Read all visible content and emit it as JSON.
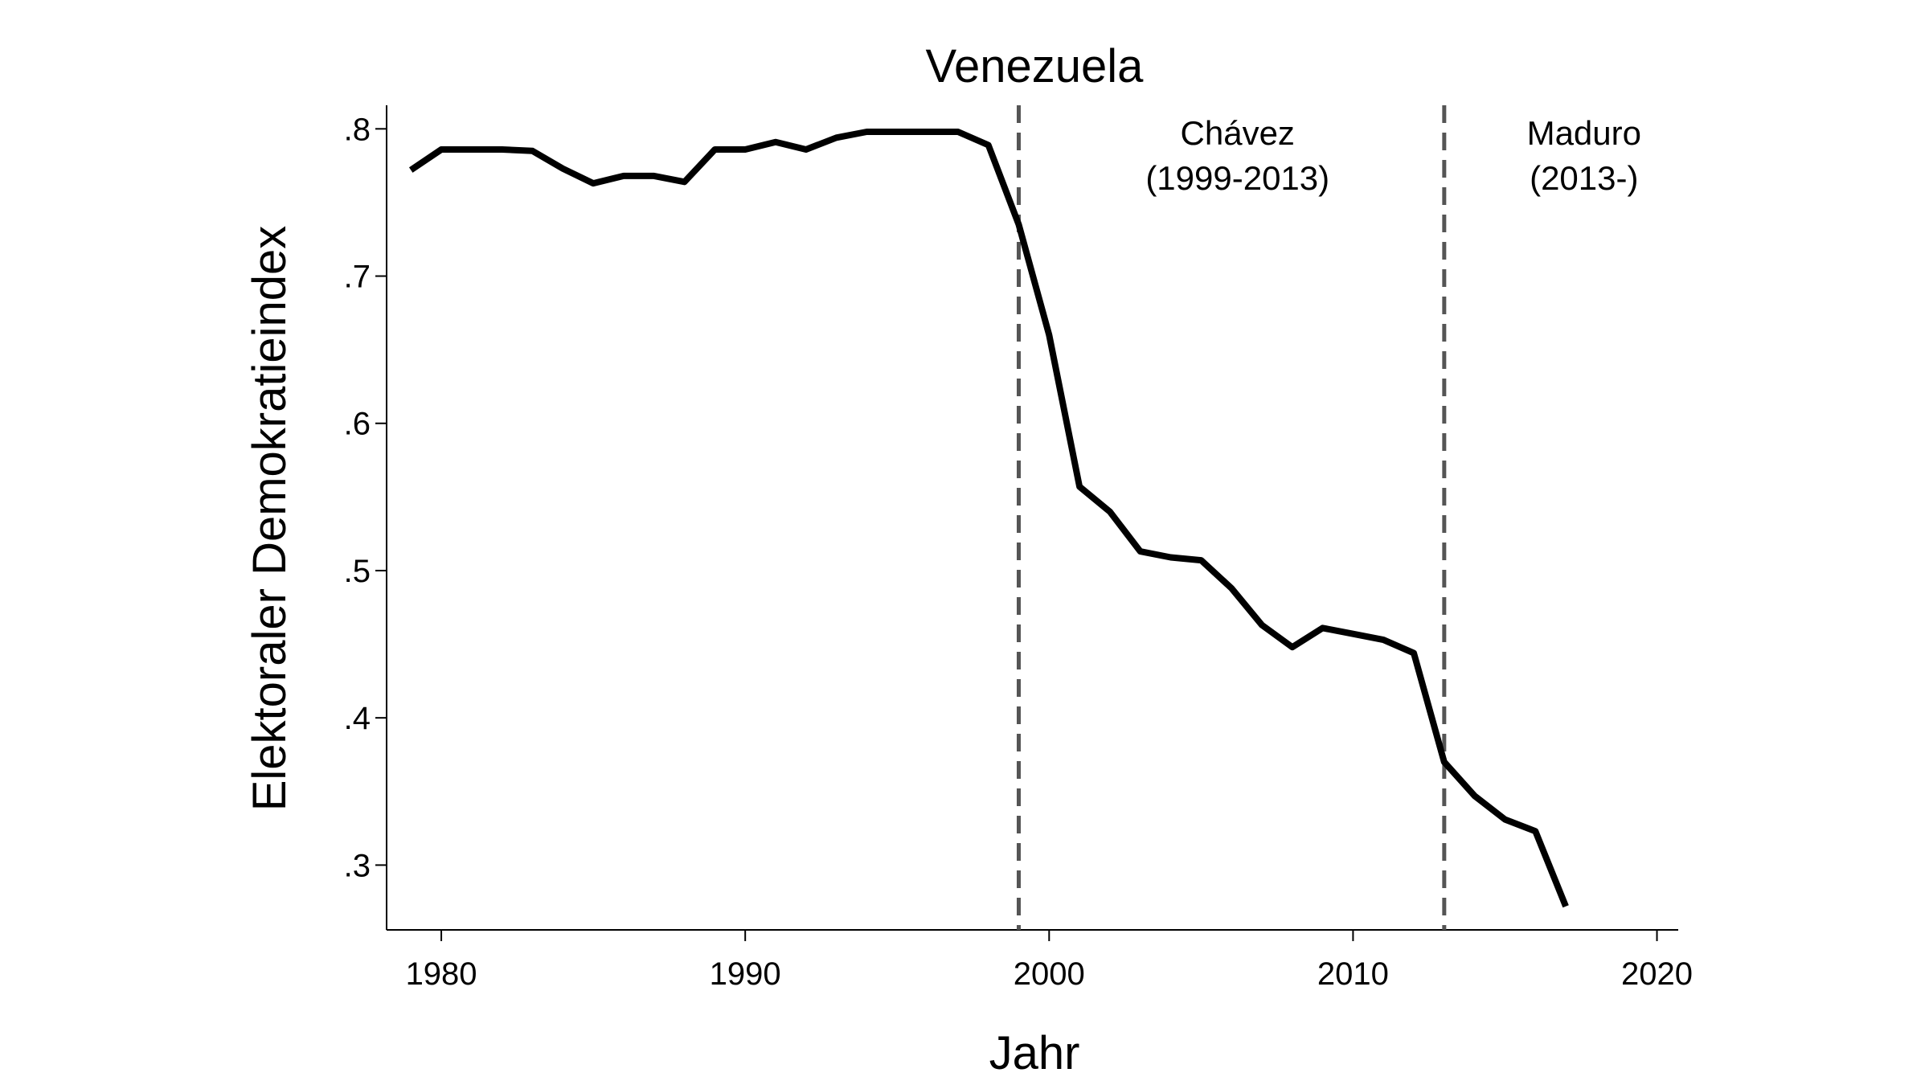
{
  "chart_data": {
    "type": "line",
    "title": "Venezuela",
    "xlabel": "Jahr",
    "ylabel": "Elektoraler Demokratieindex",
    "xlim": [
      1978.2,
      2020.7
    ],
    "ylim": [
      0.256,
      0.816
    ],
    "xticks": [
      1980,
      1990,
      2000,
      2010,
      2020
    ],
    "xtick_labels": [
      "1980",
      "1990",
      "2000",
      "2010",
      "2020"
    ],
    "yticks": [
      0.3,
      0.4,
      0.5,
      0.6,
      0.7,
      0.8
    ],
    "ytick_labels": [
      ".3",
      ".4",
      ".5",
      ".6",
      ".7",
      ".8"
    ],
    "grid": false,
    "series": [
      {
        "color": "#000000",
        "x": [
          1979,
          1980,
          1981,
          1982,
          1983,
          1984,
          1985,
          1986,
          1987,
          1988,
          1989,
          1990,
          1991,
          1992,
          1993,
          1994,
          1995,
          1996,
          1997,
          1998,
          1999,
          2000,
          2001,
          2002,
          2003,
          2004,
          2005,
          2006,
          2007,
          2008,
          2009,
          2010,
          2011,
          2012,
          2013,
          2014,
          2015,
          2016,
          2017
        ],
        "y": [
          0.772,
          0.786,
          0.786,
          0.786,
          0.785,
          0.773,
          0.763,
          0.768,
          0.768,
          0.764,
          0.786,
          0.786,
          0.791,
          0.786,
          0.794,
          0.798,
          0.798,
          0.798,
          0.798,
          0.789,
          0.735,
          0.66,
          0.557,
          0.54,
          0.513,
          0.509,
          0.507,
          0.488,
          0.463,
          0.448,
          0.461,
          0.457,
          0.453,
          0.444,
          0.37,
          0.347,
          0.331,
          0.323,
          0.272
        ]
      }
    ],
    "vlines": [
      {
        "x": 1999,
        "style": "dashed",
        "color": "#555555"
      },
      {
        "x": 2013,
        "style": "dashed",
        "color": "#555555"
      }
    ],
    "annotations": [
      {
        "lines": [
          "Chávez",
          "(1999-2013)"
        ],
        "x": 2006.2,
        "y": 0.797
      },
      {
        "lines": [
          "Maduro",
          "(2013-)"
        ],
        "x": 2017.6,
        "y": 0.797
      }
    ]
  }
}
